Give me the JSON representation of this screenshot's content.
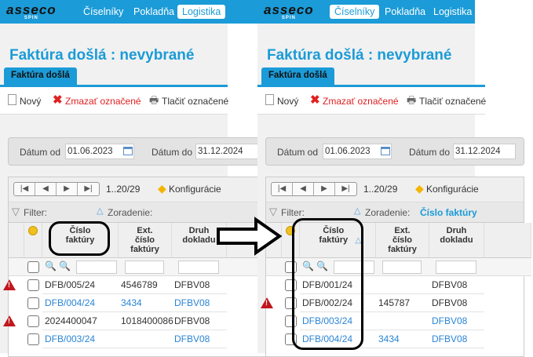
{
  "colors": {
    "accent": "#1b9bd7",
    "link": "#2a85d6",
    "delete": "#e02020",
    "warning": "#c0171d"
  },
  "logo": {
    "brand": "asseco",
    "sub": "SPIN"
  },
  "panels": [
    {
      "nav": [
        {
          "label": "Číselníky",
          "selected": false
        },
        {
          "label": "Pokladňa",
          "selected": false
        },
        {
          "label": "Logistika",
          "selected": true
        }
      ],
      "title": "Faktúra došlá :  nevybrané",
      "tab": "Faktúra došlá",
      "toolbar": {
        "new": "Nový",
        "delete": "Zmazať označené",
        "print": "Tlačiť označené"
      },
      "date_from_label": "Dátum od",
      "date_from": "01.06.2023",
      "date_to_label": "Dátum do",
      "date_to": "31.12.2024",
      "pager": "1..20/29",
      "config": "Konfigurácie",
      "filter": "Filter:",
      "sort_label": "Zoradenie:",
      "sort_value": "",
      "sorted": false,
      "columns": [
        "Číslo faktúry",
        "Ext. číslo faktúry",
        "Druh dokladu"
      ],
      "rows": [
        {
          "warn": true,
          "link": false,
          "cislo": "DFB/005/24",
          "ext": "4546789",
          "druh": "DFBV08"
        },
        {
          "warn": false,
          "link": true,
          "cislo": "DFB/004/24",
          "ext": "3434",
          "druh": "DFBV08"
        },
        {
          "warn": true,
          "link": false,
          "cislo": "2024400047",
          "ext": "1018400086",
          "druh": "DFBV08"
        },
        {
          "warn": false,
          "link": true,
          "cislo": "DFB/003/24",
          "ext": "",
          "druh": "DFBV08"
        }
      ]
    },
    {
      "nav": [
        {
          "label": "Číselníky",
          "selected": true
        },
        {
          "label": "Pokladňa",
          "selected": false
        },
        {
          "label": "Logistika",
          "selected": false
        }
      ],
      "title": "Faktúra došlá :  nevybrané",
      "tab": "Faktúra došlá",
      "toolbar": {
        "new": "Nový",
        "delete": "Zmazať označené",
        "print": "Tlačiť označené"
      },
      "date_from_label": "Dátum od",
      "date_from": "01.06.2023",
      "date_to_label": "Dátum do",
      "date_to": "31.12.2024",
      "pager": "1..20/29",
      "config": "Konfigurácie",
      "filter": "Filter:",
      "sort_label": "Zoradenie:",
      "sort_value": "Číslo faktúry",
      "sorted": true,
      "columns": [
        "Číslo faktúry",
        "Ext. číslo faktúry",
        "Druh dokladu"
      ],
      "rows": [
        {
          "warn": false,
          "link": false,
          "cislo": "DFB/001/24",
          "ext": "",
          "druh": "DFBV08"
        },
        {
          "warn": true,
          "link": false,
          "cislo": "DFB/002/24",
          "ext": "145787",
          "druh": "DFBV08"
        },
        {
          "warn": false,
          "link": true,
          "cislo": "DFB/003/24",
          "ext": "",
          "druh": "DFBV08"
        },
        {
          "warn": false,
          "link": true,
          "cislo": "DFB/004/24",
          "ext": "3434",
          "druh": "DFBV08"
        }
      ]
    }
  ]
}
